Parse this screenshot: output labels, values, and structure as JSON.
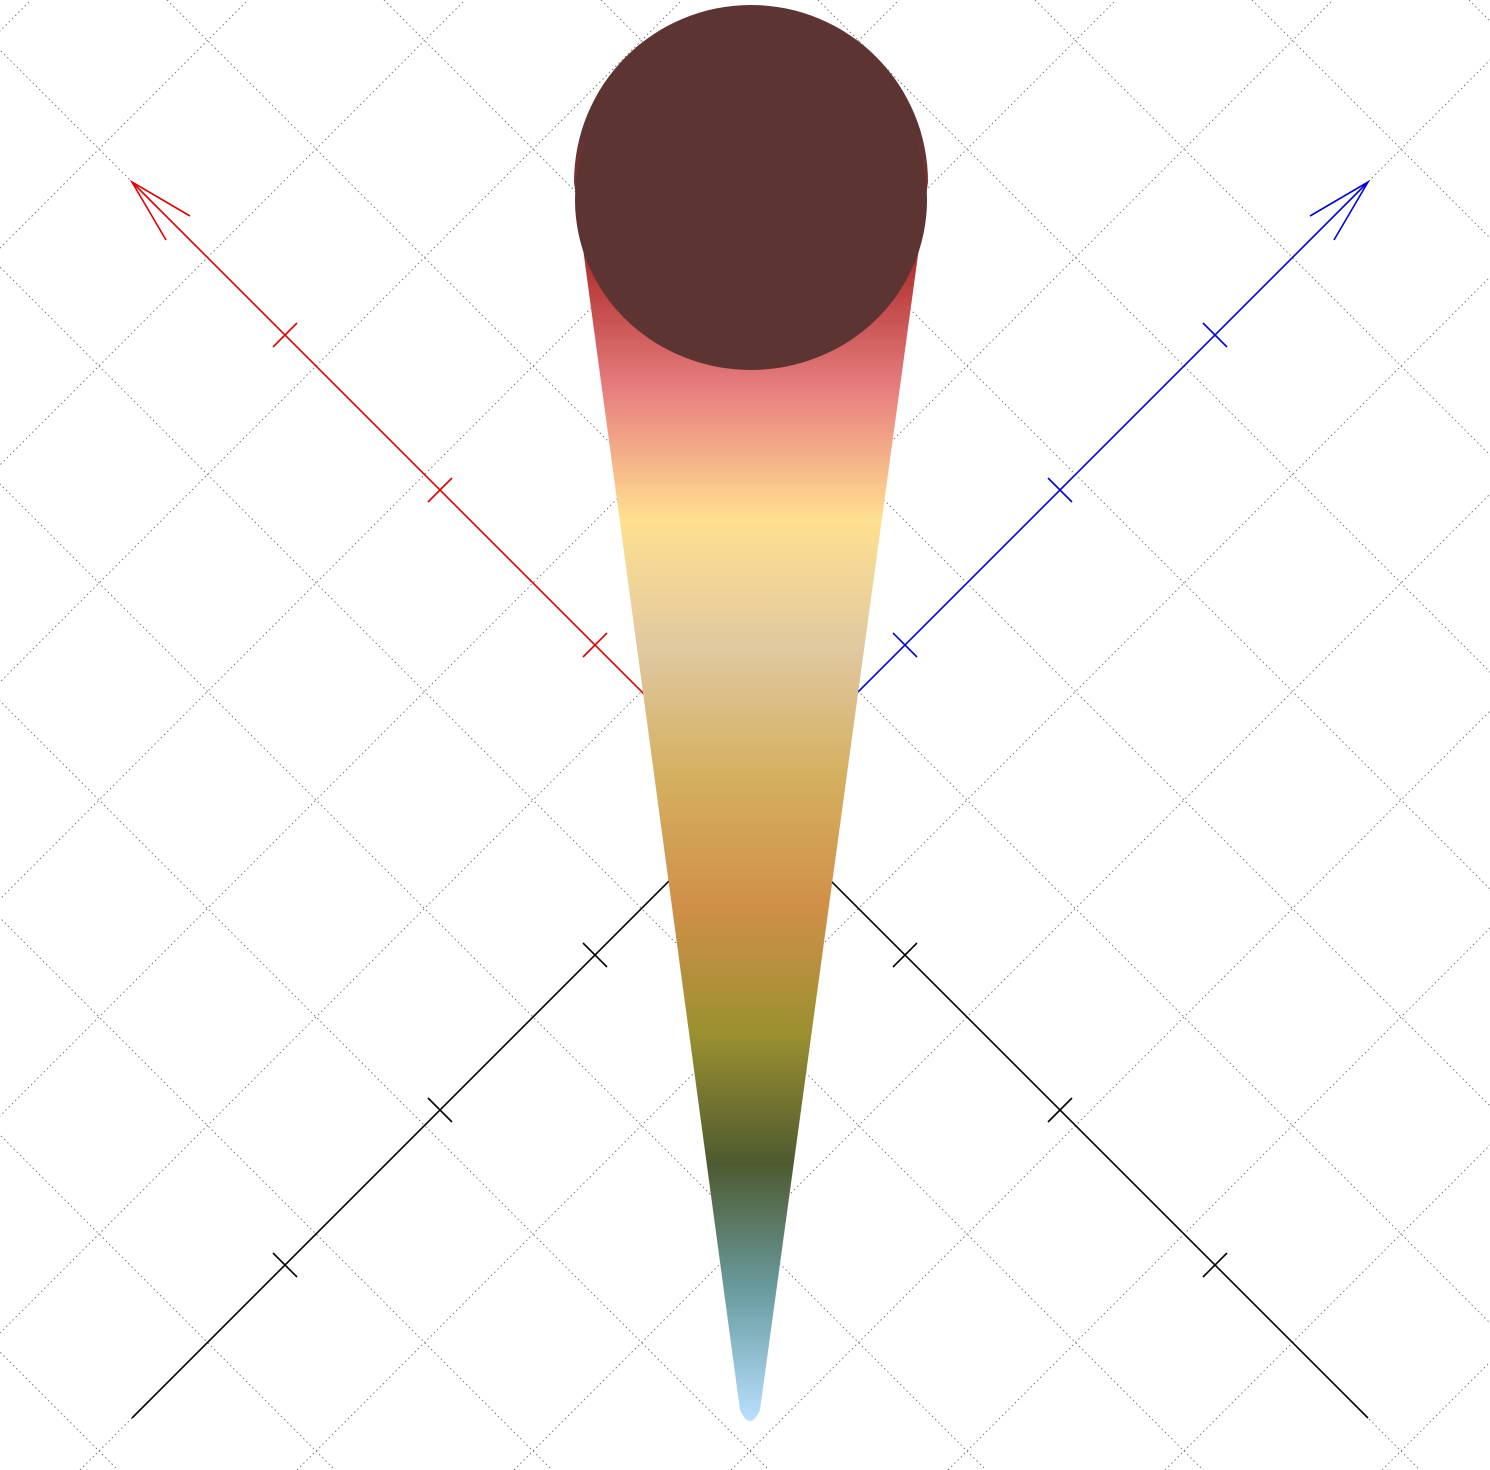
{
  "figure": {
    "kind": "3d-cone-surface",
    "background": "#ffffff",
    "grid": {
      "visible": true,
      "style": "dotted",
      "color": "#7a7a7a"
    },
    "axes": [
      {
        "name": "x-axis",
        "color": "#e00000",
        "arrow": true,
        "ticks": 3
      },
      {
        "name": "y-axis",
        "color": "#0000e0",
        "arrow": true,
        "ticks": 3
      },
      {
        "name": "z-axis-left",
        "color": "#000000",
        "arrow": false,
        "ticks": 3
      },
      {
        "name": "z-axis-right",
        "color": "#000000",
        "arrow": false,
        "ticks": 3
      }
    ],
    "surface": {
      "shape": "cone",
      "cap_color": "#5c3432",
      "colormap": [
        "#5c3432",
        "#5c3432",
        "#b03030",
        "#e88080",
        "#ffe090",
        "#e0c8a0",
        "#d4b060",
        "#d09048",
        "#9a9030",
        "#4e5a30",
        "#6a9ca0",
        "#b8e0ff"
      ]
    }
  }
}
